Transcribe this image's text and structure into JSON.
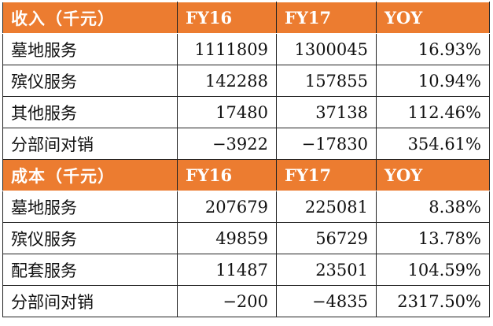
{
  "sections": [
    {
      "header": [
        "收入（千元）",
        "FY16",
        "FY17",
        "YOY"
      ],
      "rows": [
        [
          "墓地服务",
          "1111809",
          "1300045",
          "16.93%"
        ],
        [
          "殡仪服务",
          "142288",
          "157855",
          "10.94%"
        ],
        [
          "其他服务",
          "17480",
          "37138",
          "112.46%"
        ],
        [
          "分部间对销",
          "−3922",
          "−17830",
          "354.61%"
        ]
      ]
    },
    {
      "header": [
        "成本（千元）",
        "FY16",
        "FY17",
        "YOY"
      ],
      "rows": [
        [
          "墓地服务",
          "207679",
          "225081",
          "8.38%"
        ],
        [
          "殡仪服务",
          "49859",
          "56729",
          "13.78%"
        ],
        [
          "配套服务",
          "11487",
          "23501",
          "104.59%"
        ],
        [
          "分部间对销",
          "−200",
          "−4835",
          "2317.50%"
        ]
      ]
    }
  ]
}
